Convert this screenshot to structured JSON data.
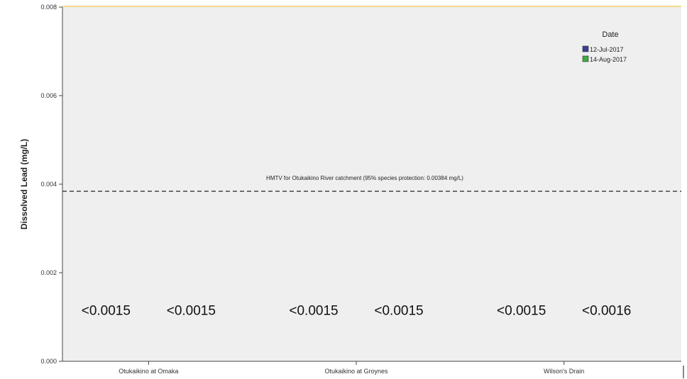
{
  "chart_data": {
    "type": "bar",
    "title": "",
    "xlabel": "",
    "ylabel": "Dissolved Lead (mg/L)",
    "ylim": [
      0,
      0.008
    ],
    "yticks": [
      "0.000",
      "0.002",
      "0.004",
      "0.006",
      "0.008"
    ],
    "grid": false,
    "categories": [
      "Otukaikino at Omaka",
      "Otukaikino at Groynes",
      "Wilson's Drain"
    ],
    "legend": {
      "title": "Date",
      "placement": "top-right",
      "entries": [
        {
          "label": "12-Jul-2017",
          "color": "#3b3f8f"
        },
        {
          "label": "14-Aug-2017",
          "color": "#3faa3f"
        }
      ]
    },
    "series": [
      {
        "name": "12-Jul-2017",
        "values": [
          null,
          null,
          null
        ],
        "labels": [
          "<0.0015",
          "<0.0015",
          "<0.0015"
        ]
      },
      {
        "name": "14-Aug-2017",
        "values": [
          null,
          null,
          null
        ],
        "labels": [
          "<0.0015",
          "<0.0015",
          "<0.0016"
        ]
      }
    ],
    "reference_line": {
      "value": 0.00384,
      "style": "dashed",
      "label": "HMTV for Otukaikino River catchment (95% species protection: 0.00384 mg/L)"
    },
    "colors": {
      "plot_background": "#efefef",
      "top_border": "#f5d98c"
    }
  }
}
